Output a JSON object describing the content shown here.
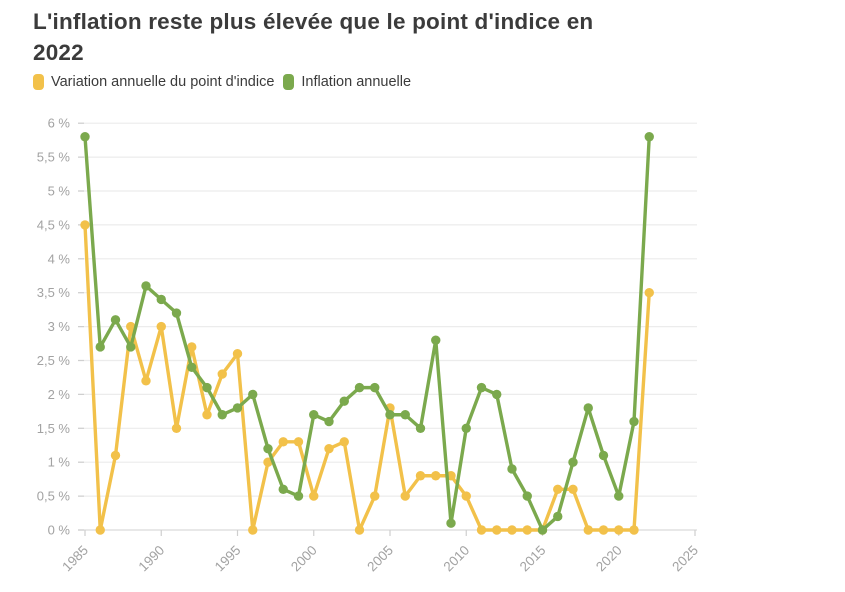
{
  "title": {
    "lines": [
      "L'inflation reste plus élevée que le point d'indice en",
      "2022"
    ]
  },
  "legend": [
    {
      "label": "Variation annuelle du point d'indice",
      "color": "#F2C14A"
    },
    {
      "label": "Inflation annuelle",
      "color": "#7BA94D"
    }
  ],
  "colors": {
    "point_indice": "#F2C14A",
    "inflation": "#7BA94D",
    "grid": "#ececec",
    "axis": "#d9d9d9",
    "tick": "#cfcfcf",
    "tick_text": "#a2a2a2",
    "title_text": "#3b3b3b"
  },
  "chart_data": {
    "type": "line",
    "title": "L'inflation reste plus élevée que le point d'indice en 2022",
    "xlabel": "",
    "ylabel": "",
    "grid": true,
    "legend_position": "top-left",
    "ylim": [
      0,
      6
    ],
    "xlim": [
      1984.5,
      2025.5
    ],
    "y_tick_step": 0.5,
    "y_ticks": [
      "0 %",
      "0,5 %",
      "1 %",
      "1,5 %",
      "2 %",
      "2,5 %",
      "3 %",
      "3,5 %",
      "4 %",
      "4,5 %",
      "5 %",
      "5,5 %",
      "6 %"
    ],
    "x_ticks": [
      1985,
      1990,
      1995,
      2000,
      2005,
      2010,
      2015,
      2020,
      2025
    ],
    "x": [
      1985,
      1986,
      1987,
      1988,
      1989,
      1990,
      1991,
      1992,
      1993,
      1994,
      1995,
      1996,
      1997,
      1998,
      1999,
      2000,
      2001,
      2002,
      2003,
      2004,
      2005,
      2006,
      2007,
      2008,
      2009,
      2010,
      2011,
      2012,
      2013,
      2014,
      2015,
      2016,
      2017,
      2018,
      2019,
      2020,
      2021,
      2022
    ],
    "series": [
      {
        "name": "Variation annuelle du point d'indice",
        "color": "#F2C14A",
        "values": [
          4.5,
          0,
          1.1,
          3,
          2.2,
          3,
          1.5,
          2.7,
          1.7,
          2.3,
          2.6,
          0,
          1,
          1.3,
          1.3,
          0.5,
          1.2,
          1.3,
          0,
          0.5,
          1.8,
          0.5,
          0.8,
          0.8,
          0.8,
          0.5,
          0,
          0,
          0,
          0,
          0,
          0.6,
          0.6,
          0,
          0,
          0,
          0,
          3.5
        ]
      },
      {
        "name": "Inflation annuelle",
        "color": "#7BA94D",
        "values": [
          5.8,
          2.7,
          3.1,
          2.7,
          3.6,
          3.4,
          3.2,
          2.4,
          2.1,
          1.7,
          1.8,
          2,
          1.2,
          0.6,
          0.5,
          1.7,
          1.6,
          1.9,
          2.1,
          2.1,
          1.7,
          1.7,
          1.5,
          2.8,
          0.1,
          1.5,
          2.1,
          2,
          0.9,
          0.5,
          0,
          0.2,
          1,
          1.8,
          1.1,
          0.5,
          1.6,
          5.8
        ]
      }
    ]
  }
}
